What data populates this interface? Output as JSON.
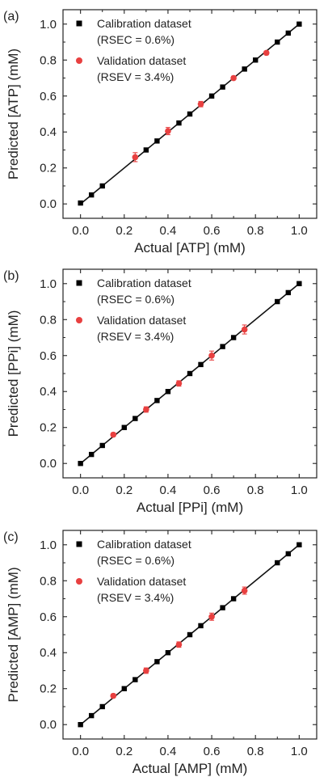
{
  "chart_data": [
    {
      "type": "scatter",
      "panel_label": "(a)",
      "xlabel": "Actual [ATP] (mM)",
      "ylabel": "Predicted [ATP] (mM)",
      "xlim": [
        -0.08,
        1.08
      ],
      "ylim": [
        -0.08,
        1.08
      ],
      "xticks": [
        "0.0",
        "0.2",
        "0.4",
        "0.6",
        "0.8",
        "1.0"
      ],
      "yticks": [
        "0.0",
        "0.2",
        "0.4",
        "0.6",
        "0.8",
        "1.0"
      ],
      "grid": false,
      "legend_position": "top-left",
      "series": [
        {
          "name": "Calibration dataset",
          "note": "(RSEC = 0.6%)",
          "marker": "square",
          "color": "#000000",
          "x": [
            0.0,
            0.05,
            0.1,
            0.3,
            0.35,
            0.45,
            0.5,
            0.6,
            0.65,
            0.75,
            0.8,
            0.9,
            0.95,
            1.0
          ],
          "y": [
            0.005,
            0.05,
            0.1,
            0.3,
            0.35,
            0.45,
            0.5,
            0.6,
            0.65,
            0.75,
            0.8,
            0.9,
            0.95,
            1.0
          ]
        },
        {
          "name": "Validation dataset",
          "note": "(RSEV = 3.4%)",
          "marker": "circle",
          "color": "#e84040",
          "x": [
            0.25,
            0.4,
            0.55,
            0.7,
            0.85
          ],
          "y": [
            0.26,
            0.405,
            0.555,
            0.7,
            0.84
          ],
          "yerr": [
            0.025,
            0.02,
            0.015,
            0.01,
            0.01
          ]
        }
      ],
      "fit_line": {
        "x": [
          0.0,
          1.0
        ],
        "y": [
          0.0,
          1.0
        ]
      }
    },
    {
      "type": "scatter",
      "panel_label": "(b)",
      "xlabel": "Actual [PPi] (mM)",
      "ylabel": "Predicted [PPi] (mM)",
      "xlim": [
        -0.08,
        1.08
      ],
      "ylim": [
        -0.08,
        1.08
      ],
      "xticks": [
        "0.0",
        "0.2",
        "0.4",
        "0.6",
        "0.8",
        "1.0"
      ],
      "yticks": [
        "0.0",
        "0.2",
        "0.4",
        "0.6",
        "0.8",
        "1.0"
      ],
      "grid": false,
      "legend_position": "top-left",
      "series": [
        {
          "name": "Calibration dataset",
          "note": "(RSEC = 0.6%)",
          "marker": "square",
          "color": "#000000",
          "x": [
            0.0,
            0.05,
            0.1,
            0.2,
            0.25,
            0.35,
            0.4,
            0.5,
            0.55,
            0.65,
            0.7,
            0.9,
            0.95,
            1.0
          ],
          "y": [
            0.0,
            0.05,
            0.1,
            0.2,
            0.25,
            0.35,
            0.4,
            0.5,
            0.55,
            0.65,
            0.7,
            0.9,
            0.95,
            1.0
          ]
        },
        {
          "name": "Validation dataset",
          "note": "(RSEV = 3.4%)",
          "marker": "circle",
          "color": "#e84040",
          "x": [
            0.15,
            0.3,
            0.45,
            0.6,
            0.75
          ],
          "y": [
            0.16,
            0.3,
            0.445,
            0.6,
            0.745
          ],
          "yerr": [
            0.01,
            0.015,
            0.015,
            0.025,
            0.025
          ]
        }
      ],
      "fit_line": {
        "x": [
          0.0,
          1.0
        ],
        "y": [
          0.0,
          1.0
        ]
      }
    },
    {
      "type": "scatter",
      "panel_label": "(c)",
      "xlabel": "Actual [AMP] (mM)",
      "ylabel": "Predicted [AMP] (mM)",
      "xlim": [
        -0.08,
        1.08
      ],
      "ylim": [
        -0.08,
        1.08
      ],
      "xticks": [
        "0.0",
        "0.2",
        "0.4",
        "0.6",
        "0.8",
        "1.0"
      ],
      "yticks": [
        "0.0",
        "0.2",
        "0.4",
        "0.6",
        "0.8",
        "1.0"
      ],
      "grid": false,
      "legend_position": "top-left",
      "series": [
        {
          "name": "Calibration dataset",
          "note": "(RSEC = 0.6%)",
          "marker": "square",
          "color": "#000000",
          "x": [
            0.0,
            0.05,
            0.1,
            0.2,
            0.25,
            0.35,
            0.4,
            0.5,
            0.55,
            0.65,
            0.7,
            0.9,
            0.95,
            1.0
          ],
          "y": [
            0.0,
            0.05,
            0.1,
            0.2,
            0.25,
            0.35,
            0.4,
            0.5,
            0.55,
            0.65,
            0.7,
            0.9,
            0.95,
            1.0
          ]
        },
        {
          "name": "Validation dataset",
          "note": "(RSEV = 3.4%)",
          "marker": "circle",
          "color": "#e84040",
          "x": [
            0.15,
            0.3,
            0.45,
            0.6,
            0.75
          ],
          "y": [
            0.16,
            0.3,
            0.445,
            0.6,
            0.745
          ],
          "yerr": [
            0.01,
            0.015,
            0.015,
            0.02,
            0.02
          ]
        }
      ],
      "fit_line": {
        "x": [
          0.0,
          1.0
        ],
        "y": [
          0.0,
          1.0
        ]
      }
    }
  ]
}
